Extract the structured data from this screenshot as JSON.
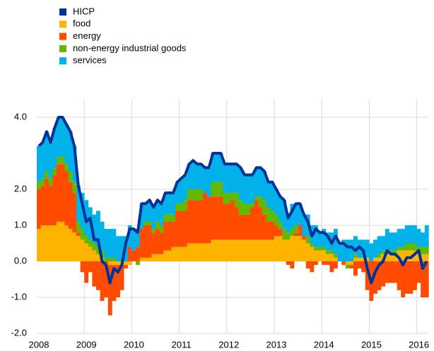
{
  "chart_data": {
    "type": "bar",
    "stacked": true,
    "categories": [
      "2008",
      null,
      null,
      null,
      null,
      null,
      null,
      null,
      null,
      null,
      null,
      null,
      "2009",
      null,
      null,
      null,
      null,
      null,
      null,
      null,
      null,
      null,
      null,
      null,
      "2010",
      null,
      null,
      null,
      null,
      null,
      null,
      null,
      null,
      null,
      null,
      null,
      "2011",
      null,
      null,
      null,
      null,
      null,
      null,
      null,
      null,
      null,
      null,
      null,
      "2012",
      null,
      null,
      null,
      null,
      null,
      null,
      null,
      null,
      null,
      null,
      null,
      "2013",
      null,
      null,
      null,
      null,
      null,
      null,
      null,
      null,
      null,
      null,
      null,
      "2014",
      null,
      null,
      null,
      null,
      null,
      null,
      null,
      null,
      null,
      null,
      null,
      "2015",
      null,
      null,
      null,
      null,
      null,
      null,
      null,
      null,
      null,
      null,
      null,
      "2016",
      null,
      null
    ],
    "ylim": [
      -2,
      4.5
    ],
    "yticks": [
      {
        "value": 4,
        "label": "4.0"
      },
      {
        "value": 2,
        "label": "2.0"
      },
      {
        "value": 1,
        "label": "1.0"
      },
      {
        "value": 0,
        "label": "0.0"
      },
      {
        "value": -1,
        "label": "-1.0"
      },
      {
        "value": -2,
        "label": "-2.0"
      }
    ],
    "grid": true,
    "series": [
      {
        "name": "HICP",
        "type": "line",
        "color": "#003299",
        "values": [
          3.2,
          3.3,
          3.6,
          3.3,
          3.7,
          4.0,
          4.0,
          3.8,
          3.6,
          3.2,
          2.1,
          1.6,
          1.1,
          1.2,
          0.6,
          0.6,
          0.0,
          -0.1,
          -0.6,
          -0.2,
          -0.3,
          -0.1,
          0.5,
          0.9,
          0.9,
          0.8,
          1.6,
          1.6,
          1.7,
          1.5,
          1.7,
          1.6,
          1.9,
          1.9,
          1.9,
          2.2,
          2.3,
          2.4,
          2.7,
          2.8,
          2.7,
          2.7,
          2.6,
          2.6,
          3.0,
          3.0,
          3.0,
          2.7,
          2.7,
          2.7,
          2.7,
          2.6,
          2.4,
          2.4,
          2.4,
          2.6,
          2.6,
          2.5,
          2.2,
          2.2,
          2.0,
          1.8,
          1.7,
          1.2,
          1.4,
          1.6,
          1.6,
          1.3,
          1.1,
          0.7,
          0.9,
          0.8,
          0.8,
          0.7,
          0.5,
          0.7,
          0.5,
          0.5,
          0.4,
          0.4,
          0.3,
          0.4,
          0.3,
          -0.2,
          -0.6,
          -0.3,
          -0.1,
          0.0,
          0.3,
          0.2,
          0.2,
          0.1,
          -0.1,
          0.1,
          0.1,
          0.2,
          0.3,
          -0.2,
          0.0
        ]
      },
      {
        "name": "food",
        "color": "#ffb400",
        "values": [
          0.9,
          1.0,
          1.0,
          1.0,
          1.0,
          1.1,
          1.1,
          1.0,
          0.9,
          0.8,
          0.7,
          0.6,
          0.5,
          0.4,
          0.3,
          0.2,
          0.1,
          0.0,
          -0.1,
          -0.1,
          -0.1,
          -0.1,
          -0.1,
          -0.1,
          0.0,
          0.0,
          0.1,
          0.1,
          0.1,
          0.2,
          0.2,
          0.2,
          0.3,
          0.3,
          0.4,
          0.4,
          0.4,
          0.4,
          0.5,
          0.5,
          0.5,
          0.5,
          0.5,
          0.5,
          0.6,
          0.6,
          0.6,
          0.6,
          0.6,
          0.6,
          0.6,
          0.6,
          0.6,
          0.6,
          0.6,
          0.6,
          0.6,
          0.6,
          0.6,
          0.6,
          0.7,
          0.7,
          0.6,
          0.6,
          0.7,
          0.7,
          0.7,
          0.6,
          0.5,
          0.4,
          0.3,
          0.3,
          0.3,
          0.2,
          0.2,
          0.1,
          0.0,
          0.0,
          -0.1,
          -0.1,
          0.1,
          0.1,
          0.1,
          0.1,
          0.0,
          0.1,
          0.1,
          0.2,
          0.2,
          0.2,
          0.2,
          0.3,
          0.3,
          0.3,
          0.3,
          0.3,
          0.2,
          0.2,
          0.2
        ]
      },
      {
        "name": "energy",
        "color": "#ff4b00",
        "values": [
          1.1,
          1.1,
          1.3,
          1.1,
          1.4,
          1.6,
          1.6,
          1.5,
          1.3,
          1.1,
          0.1,
          -0.3,
          -0.6,
          -0.3,
          -0.7,
          -0.8,
          -1.1,
          -1.0,
          -1.4,
          -1.0,
          -0.9,
          -0.7,
          -0.1,
          0.4,
          0.3,
          0.4,
          0.8,
          0.9,
          0.9,
          0.6,
          0.7,
          0.6,
          0.8,
          0.8,
          0.7,
          1.0,
          1.0,
          1.0,
          1.2,
          1.2,
          1.2,
          1.2,
          1.4,
          1.3,
          1.2,
          1.2,
          1.2,
          1.0,
          1.0,
          1.1,
          0.9,
          0.7,
          0.7,
          0.7,
          0.9,
          1.1,
          0.9,
          0.7,
          0.5,
          0.5,
          0.3,
          0.2,
          0.0,
          -0.1,
          -0.2,
          0.1,
          0.3,
          0.1,
          -0.2,
          -0.3,
          -0.1,
          0.0,
          -0.1,
          -0.1,
          -0.3,
          -0.2,
          0.0,
          -0.1,
          0.0,
          -0.1,
          -0.4,
          -0.2,
          -0.3,
          -0.8,
          -1.1,
          -0.9,
          -0.8,
          -0.7,
          -0.6,
          -0.6,
          -0.6,
          -0.8,
          -1.0,
          -0.9,
          -0.9,
          -0.8,
          -0.6,
          -1.0,
          -1.0
        ]
      },
      {
        "name": "non-energy industrial goods",
        "color": "#65b800",
        "values": [
          0.2,
          0.2,
          0.2,
          0.2,
          0.2,
          0.2,
          0.2,
          0.2,
          0.3,
          0.3,
          0.3,
          0.3,
          0.2,
          0.2,
          0.2,
          0.2,
          0.2,
          0.1,
          0.1,
          0.1,
          0.0,
          0.0,
          0.0,
          0.0,
          0.0,
          -0.1,
          0.0,
          0.1,
          0.1,
          0.1,
          0.2,
          0.2,
          0.2,
          0.2,
          0.2,
          0.2,
          0.2,
          0.3,
          0.3,
          0.3,
          0.3,
          0.3,
          0.0,
          0.0,
          0.4,
          0.4,
          0.4,
          0.3,
          0.3,
          0.2,
          0.4,
          0.4,
          0.3,
          0.3,
          0.1,
          0.1,
          0.3,
          0.4,
          0.4,
          0.3,
          0.3,
          0.2,
          0.3,
          0.2,
          0.2,
          0.2,
          0.0,
          0.0,
          0.2,
          0.1,
          0.1,
          0.1,
          0.1,
          0.1,
          0.1,
          0.1,
          0.0,
          0.0,
          -0.1,
          0.0,
          0.1,
          0.0,
          0.0,
          0.0,
          0.0,
          0.0,
          0.1,
          0.1,
          0.1,
          0.1,
          0.1,
          0.1,
          0.1,
          0.2,
          0.2,
          0.2,
          0.2,
          0.2,
          0.2
        ]
      },
      {
        "name": "services",
        "color": "#00b1ea",
        "values": [
          1.0,
          1.0,
          1.1,
          1.0,
          1.1,
          1.1,
          1.1,
          1.1,
          1.1,
          1.0,
          1.0,
          1.0,
          1.0,
          0.9,
          0.8,
          1.0,
          0.8,
          0.8,
          0.8,
          0.8,
          0.7,
          0.7,
          0.7,
          0.6,
          0.6,
          0.5,
          0.7,
          0.5,
          0.6,
          0.6,
          0.6,
          0.6,
          0.6,
          0.6,
          0.6,
          0.6,
          0.7,
          0.7,
          0.7,
          0.8,
          0.7,
          0.7,
          0.7,
          0.8,
          0.8,
          0.8,
          0.8,
          0.8,
          0.8,
          0.8,
          0.8,
          0.9,
          0.8,
          0.8,
          0.8,
          0.8,
          0.8,
          0.8,
          0.7,
          0.8,
          0.7,
          0.7,
          0.8,
          0.5,
          0.7,
          0.6,
          0.6,
          0.6,
          0.6,
          0.5,
          0.6,
          0.4,
          0.5,
          0.5,
          0.5,
          0.7,
          0.5,
          0.6,
          0.6,
          0.6,
          0.5,
          0.5,
          0.5,
          0.5,
          0.5,
          0.5,
          0.5,
          0.4,
          0.6,
          0.5,
          0.5,
          0.5,
          0.5,
          0.5,
          0.5,
          0.5,
          0.5,
          0.4,
          0.6
        ]
      }
    ]
  }
}
